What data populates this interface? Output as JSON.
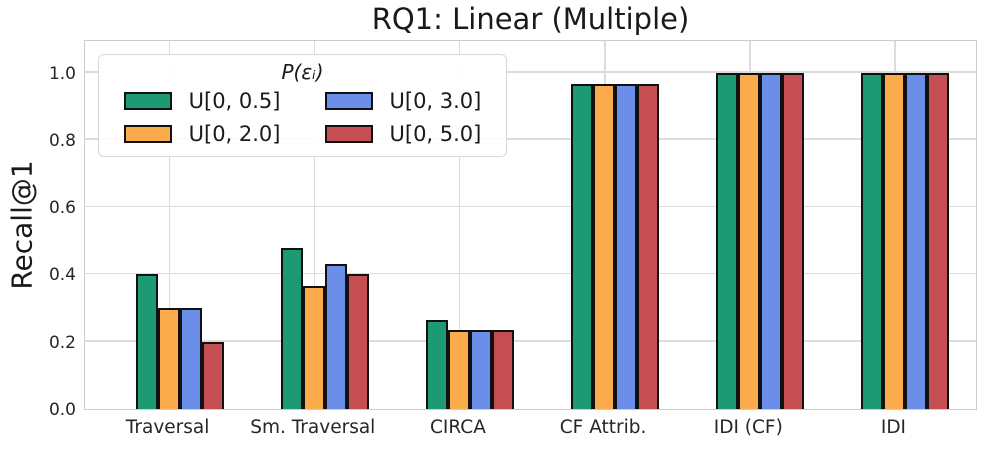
{
  "chart_data": {
    "type": "bar",
    "title": "RQ1: Linear (Multiple)",
    "xlabel": "",
    "ylabel": "Recall@1",
    "ylim": [
      0,
      1.1
    ],
    "yticks": [
      0.0,
      0.2,
      0.4,
      0.6,
      0.8,
      1.0
    ],
    "grid": true,
    "legend_title": "P(εᵢ)",
    "legend_position": "upper left",
    "categories": [
      "Traversal",
      "Sm. Traversal",
      "CIRCA",
      "CF Attrib.",
      "IDI (CF)",
      "IDI"
    ],
    "series": [
      {
        "name": "U[0, 0.5]",
        "color": "#1d9a74",
        "values": [
          0.4,
          0.48,
          0.265,
          0.965,
          1.0,
          1.0
        ]
      },
      {
        "name": "U[0, 2.0]",
        "color": "#fbaa4c",
        "values": [
          0.3,
          0.365,
          0.235,
          0.965,
          1.0,
          1.0
        ]
      },
      {
        "name": "U[0, 3.0]",
        "color": "#6b8fe9",
        "values": [
          0.3,
          0.43,
          0.235,
          0.965,
          1.0,
          1.0
        ]
      },
      {
        "name": "U[0, 5.0]",
        "color": "#c44e52",
        "values": [
          0.2,
          0.4,
          0.235,
          0.965,
          1.0,
          1.0
        ]
      }
    ],
    "bar_edge_color": "#111111",
    "grid_color": "#dcdcdc",
    "text_color": "#1a1a1a"
  }
}
